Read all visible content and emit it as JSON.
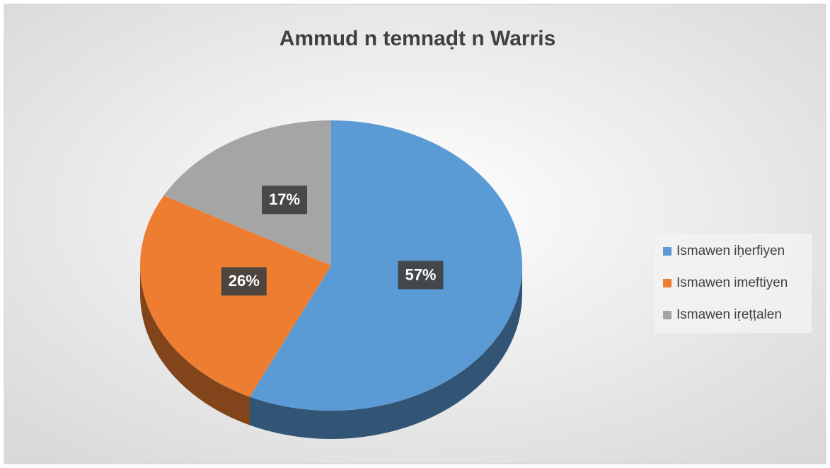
{
  "chart_data": {
    "type": "pie",
    "title": "Ammud n temnaḍt n Warris",
    "categories": [
      "Ismawen iḥerfiyen",
      "Ismawen imeftiyen",
      "Ismawen iṛeṭṭalen"
    ],
    "values": [
      57,
      26,
      17
    ],
    "value_labels": [
      "57%",
      "26%",
      "17%"
    ],
    "colors": [
      "#5b9bd5",
      "#ed7d31",
      "#a5a5a5"
    ],
    "legend": "right"
  }
}
